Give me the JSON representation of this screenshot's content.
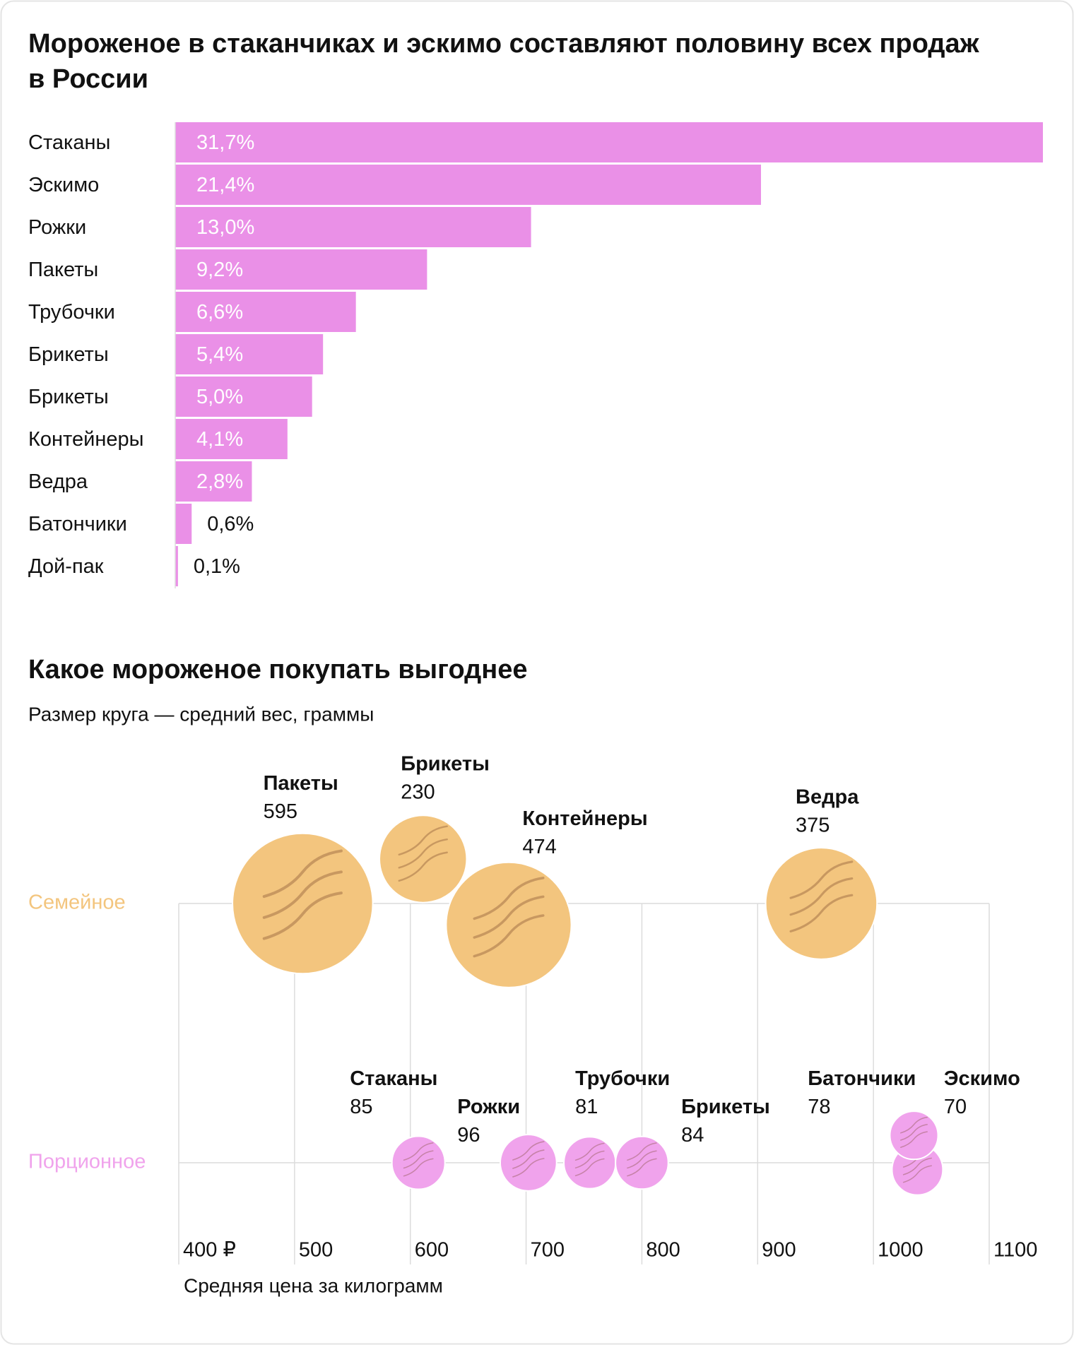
{
  "chart_data": [
    {
      "type": "bar",
      "title": "Мороженое в стаканчиках и эскимо составляют половину всех продаж в России",
      "categories": [
        "Стаканы",
        "Эскимо",
        "Рожки",
        "Пакеты",
        "Трубочки",
        "Брикеты",
        "Брикеты",
        "Контейнеры",
        "Ведра",
        "Батончики",
        "Дой-пак"
      ],
      "values": [
        31.7,
        21.4,
        13.0,
        9.2,
        6.6,
        5.4,
        5.0,
        4.1,
        2.8,
        0.6,
        0.1
      ],
      "value_labels": [
        "31,7%",
        "21,4%",
        "13,0%",
        "9,2%",
        "6,6%",
        "5,4%",
        "5,0%",
        "4,1%",
        "2,8%",
        "0,6%",
        "0,1%"
      ],
      "color": "#ea90e7"
    },
    {
      "type": "bubble",
      "title": "Какое мороженое покупать выгоднее",
      "subtitle": "Размер круга — средний вес, граммы",
      "x_label": "Средняя цена за килограмм",
      "xlim": [
        400,
        1100
      ],
      "xticks": [
        {
          "value": 400,
          "label": "400 ₽"
        },
        500,
        600,
        700,
        800,
        900,
        1000,
        1100
      ],
      "series": [
        {
          "name": "Семейное",
          "color": "#f3c57e",
          "labels": [
            "Пакеты",
            "Брикеты",
            "Контейнеры",
            "Ведра"
          ],
          "x": [
            507,
            611,
            685,
            955
          ],
          "sizes": [
            595,
            230,
            474,
            375
          ]
        },
        {
          "name": "Порционное",
          "color": "#f0a3ec",
          "labels": [
            "Стаканы",
            "Рожки",
            "Трубочки",
            "Брикеты",
            "Батончики",
            "Эскимо"
          ],
          "x": [
            607,
            702,
            755,
            800,
            1038,
            1035
          ],
          "sizes": [
            85,
            96,
            81,
            84,
            78,
            70
          ]
        }
      ]
    }
  ]
}
